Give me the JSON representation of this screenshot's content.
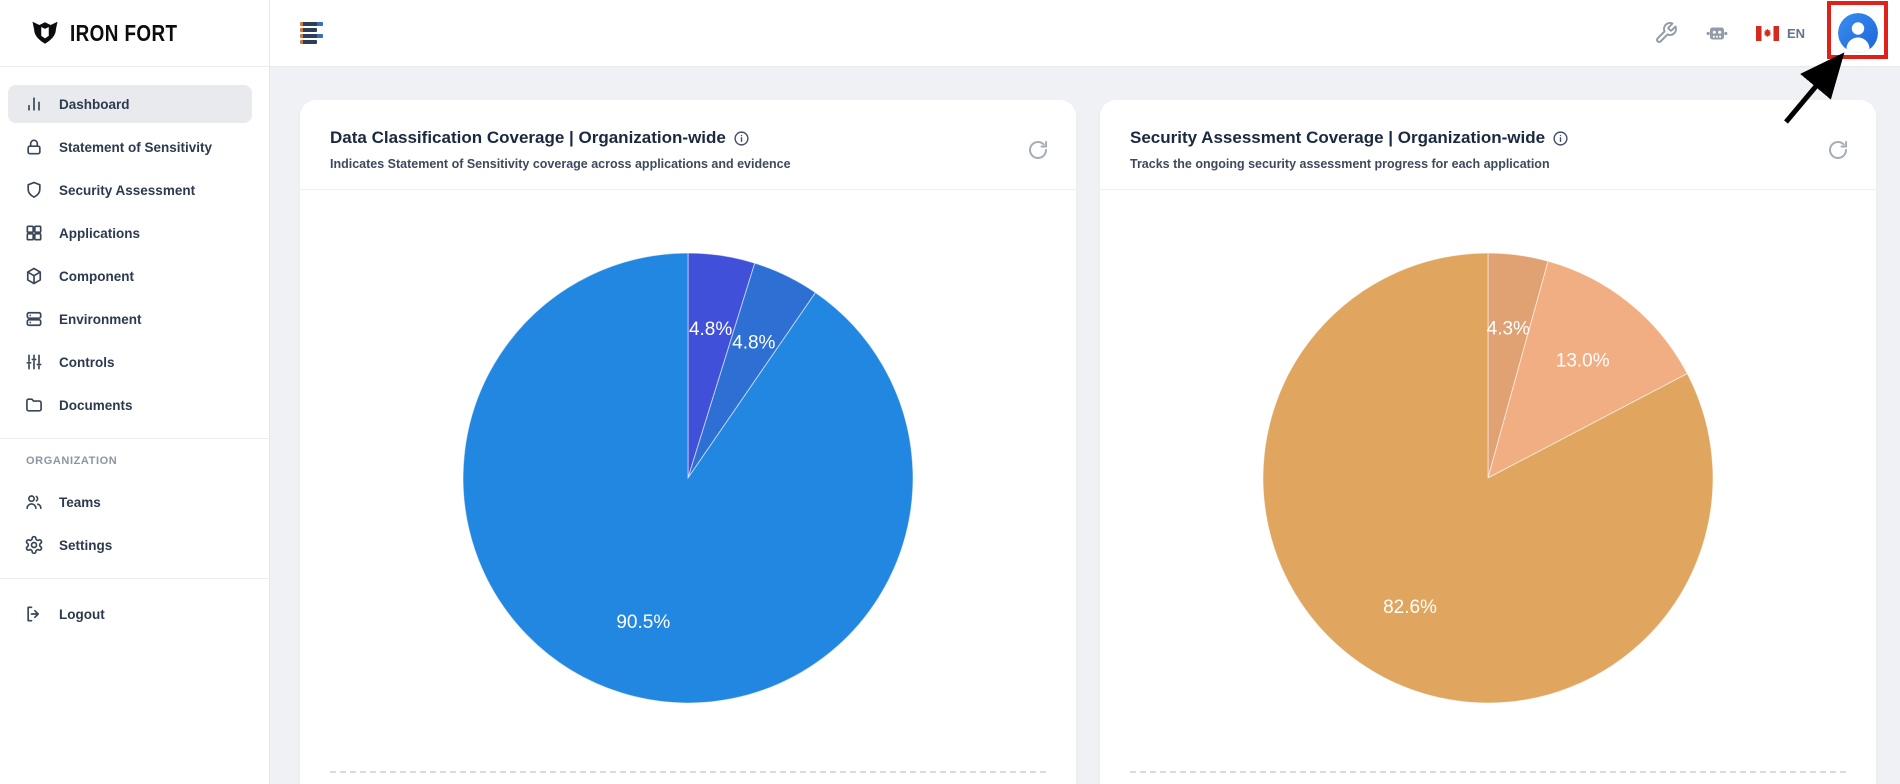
{
  "brand": {
    "name": "IRON FORT"
  },
  "sidebar": {
    "items": [
      {
        "label": "Dashboard",
        "icon": "bar-chart-icon",
        "active": true
      },
      {
        "label": "Statement of Sensitivity",
        "icon": "lock-icon",
        "active": false
      },
      {
        "label": "Security Assessment",
        "icon": "shield-icon",
        "active": false
      },
      {
        "label": "Applications",
        "icon": "grid-icon",
        "active": false
      },
      {
        "label": "Component",
        "icon": "cube-icon",
        "active": false
      },
      {
        "label": "Environment",
        "icon": "server-icon",
        "active": false
      },
      {
        "label": "Controls",
        "icon": "sliders-icon",
        "active": false
      },
      {
        "label": "Documents",
        "icon": "folder-icon",
        "active": false
      }
    ],
    "section_label": "ORGANIZATION",
    "org_items": [
      {
        "label": "Teams",
        "icon": "users-icon"
      },
      {
        "label": "Settings",
        "icon": "gear-icon"
      }
    ],
    "logout_label": "Logout"
  },
  "topbar": {
    "language_label": "EN",
    "icons": [
      "wrench-icon",
      "robot-icon",
      "canada-flag-icon",
      "user-avatar-button"
    ]
  },
  "annotations": {
    "highlight_color": "#e0211a",
    "highlight_target": "user-avatar-button",
    "arrow_color": "#000000"
  },
  "chart_data": [
    {
      "type": "pie",
      "title": "Data Classification Coverage | Organization-wide",
      "subtitle": "Indicates Statement of Sensitivity coverage across applications and evidence",
      "labels": [
        "4.8%",
        "4.8%",
        "90.5%"
      ],
      "values": [
        4.8,
        4.8,
        90.5
      ],
      "colors": [
        "#4150d8",
        "#2d6fd2",
        "#2287e0"
      ],
      "label_color": "#ffffff",
      "start_angle_deg": 0,
      "direction": "clockwise",
      "legend": "none"
    },
    {
      "type": "pie",
      "title": "Security Assessment Coverage | Organization-wide",
      "subtitle": "Tracks the ongoing security assessment progress for each application",
      "labels": [
        "4.3%",
        "13.0%",
        "82.6%"
      ],
      "values": [
        4.3,
        13.0,
        82.6
      ],
      "colors": [
        "#e0a173",
        "#f0ae82",
        "#e0a55e"
      ],
      "label_color": "#ffffff",
      "start_angle_deg": 0,
      "direction": "clockwise",
      "legend": "none"
    }
  ]
}
